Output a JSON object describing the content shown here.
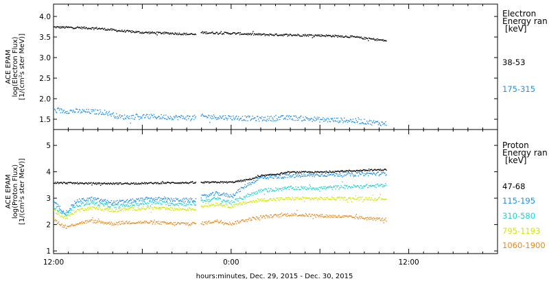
{
  "chart_data": [
    {
      "type": "scatter",
      "panel": "electron",
      "ylabel": [
        "ACE EPAM",
        "log(Electron Flux)",
        "[1/(cm²s ster MeV)]"
      ],
      "ylim": [
        1.25,
        4.3
      ],
      "yticks": [
        "1.5",
        "2.0",
        "2.5",
        "3.0",
        "3.5",
        "4.0"
      ],
      "legend_title": [
        "Electron",
        "Energy ran",
        "[keV]"
      ],
      "gap_hours": [
        9.6,
        9.9
      ],
      "series": [
        {
          "name": "38-53",
          "color": "#000000",
          "x": [
            0,
            1.5,
            3,
            4.5,
            6,
            8,
            9.6,
            9.9,
            12,
            14,
            16,
            18,
            20,
            21,
            22.5
          ],
          "y": [
            3.75,
            3.74,
            3.72,
            3.66,
            3.62,
            3.6,
            3.57,
            3.62,
            3.6,
            3.57,
            3.56,
            3.55,
            3.52,
            3.48,
            3.42
          ],
          "noise": 0.025
        },
        {
          "name": "175-315",
          "color": "#1f8fe8",
          "x": [
            0,
            2,
            3.5,
            4.5,
            6,
            8,
            9.6,
            9.9,
            12,
            14,
            16,
            18,
            20,
            21,
            22.5
          ],
          "y": [
            1.72,
            1.7,
            1.68,
            1.56,
            1.58,
            1.56,
            1.55,
            1.58,
            1.55,
            1.52,
            1.55,
            1.5,
            1.48,
            1.45,
            1.4
          ],
          "noise": 0.06
        }
      ]
    },
    {
      "type": "scatter",
      "panel": "proton",
      "ylabel": [
        "ACE EPAM",
        "log(Proton Flux)",
        "[1/(cm²s ster MeV)]"
      ],
      "ylim": [
        0.9,
        5.6
      ],
      "yticks": [
        "1",
        "2",
        "3",
        "4",
        "5"
      ],
      "legend_title": [
        "Proton",
        "Energy ran",
        "[keV]"
      ],
      "gap_hours": [
        9.6,
        9.9
      ],
      "series": [
        {
          "name": "47-68",
          "color": "#000000",
          "x": [
            0,
            2,
            4,
            6,
            8,
            9.6,
            9.9,
            11,
            12,
            13,
            14,
            16,
            18,
            20,
            22.5
          ],
          "y": [
            3.6,
            3.58,
            3.57,
            3.58,
            3.6,
            3.6,
            3.6,
            3.62,
            3.62,
            3.7,
            3.85,
            4.0,
            4.0,
            4.05,
            4.1
          ],
          "noise": 0.03
        },
        {
          "name": "115-195",
          "color": "#1f8fe8",
          "x": [
            0,
            0.8,
            1.5,
            2.5,
            4,
            5,
            6.5,
            8,
            9.6,
            9.9,
            11,
            12,
            13,
            14,
            16,
            18,
            20,
            22.5
          ],
          "y": [
            2.85,
            2.45,
            2.9,
            3.0,
            2.85,
            2.9,
            3.0,
            2.95,
            2.95,
            3.05,
            3.2,
            3.1,
            3.5,
            3.8,
            3.85,
            3.9,
            3.92,
            3.95
          ],
          "noise": 0.07
        },
        {
          "name": "310-580",
          "color": "#19d2d2",
          "x": [
            0,
            0.8,
            1.5,
            2.5,
            4,
            5,
            6.5,
            8,
            9.6,
            9.9,
            11,
            12,
            13,
            14,
            16,
            18,
            20,
            22.5
          ],
          "y": [
            2.7,
            2.35,
            2.75,
            2.85,
            2.7,
            2.75,
            2.85,
            2.8,
            2.8,
            2.9,
            3.0,
            2.85,
            3.1,
            3.3,
            3.4,
            3.4,
            3.45,
            3.5
          ],
          "noise": 0.07
        },
        {
          "name": "795-1193",
          "color": "#d2e600",
          "x": [
            0,
            0.8,
            1.5,
            2.5,
            4,
            5,
            6.5,
            8,
            9.6,
            9.9,
            11,
            12,
            13,
            14,
            16,
            18,
            20,
            22.5
          ],
          "y": [
            2.55,
            2.25,
            2.55,
            2.65,
            2.55,
            2.6,
            2.65,
            2.6,
            2.6,
            2.7,
            2.8,
            2.7,
            2.85,
            2.95,
            3.0,
            3.0,
            3.0,
            3.0
          ],
          "noise": 0.06
        },
        {
          "name": "1060-1900",
          "color": "#e8881a",
          "x": [
            0,
            0.8,
            1.5,
            2.5,
            4,
            5,
            6.5,
            8,
            9.6,
            9.9,
            11,
            12,
            13,
            14,
            16,
            18,
            20,
            22.5
          ],
          "y": [
            2.2,
            1.9,
            2.05,
            2.15,
            2.05,
            2.1,
            2.1,
            2.05,
            2.05,
            2.05,
            2.15,
            2.05,
            2.2,
            2.3,
            2.4,
            2.35,
            2.3,
            2.2
          ],
          "noise": 0.06
        }
      ]
    }
  ],
  "x_axis": {
    "xlim_hours": [
      0,
      30
    ],
    "ticks": [
      {
        "hour": 0,
        "label": "12:00"
      },
      {
        "hour": 12,
        "label": "0:00"
      },
      {
        "hour": 24,
        "label": "12:00"
      }
    ],
    "label": "hours:minutes, Dec. 29, 2015 - Dec. 30, 2015"
  }
}
